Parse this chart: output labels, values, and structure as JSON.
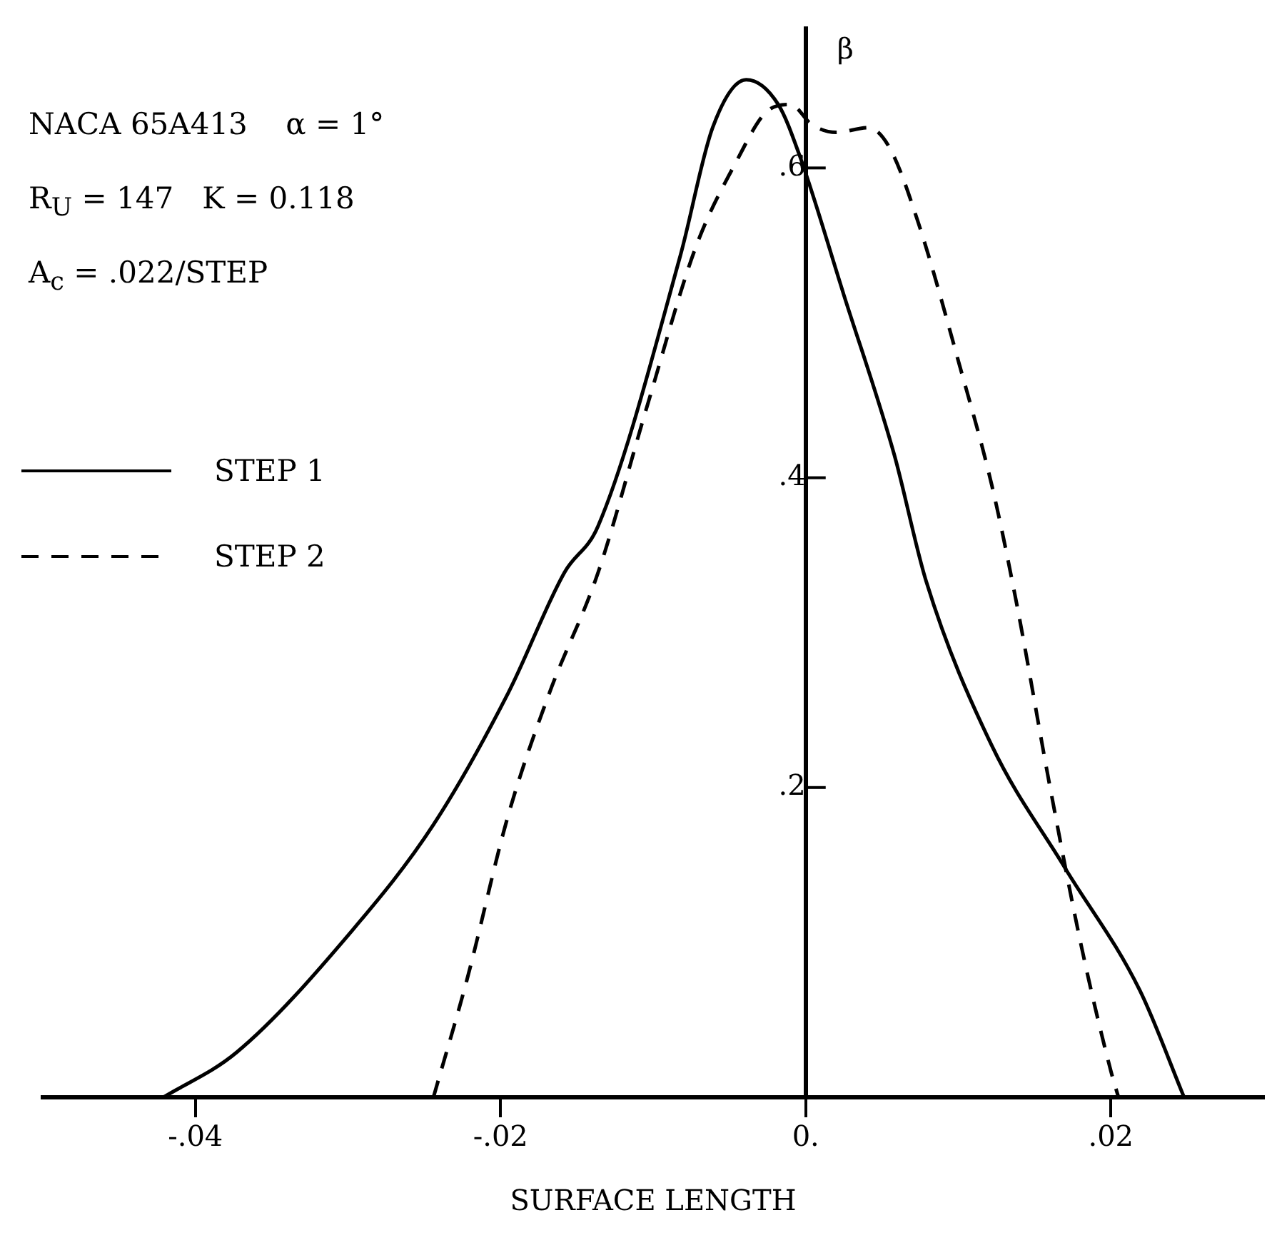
{
  "chart_data": {
    "type": "line",
    "xlabel": "SURFACE LENGTH",
    "ylabel": "β",
    "annotations": [
      "NACA 65A413    α = 1°",
      "R$_{U}$ = 147   K = 0.118",
      "A$_{c}$ = .022/STEP"
    ],
    "xlim": [
      -0.05,
      0.03
    ],
    "ylim": [
      0,
      0.69
    ],
    "xticks": [
      {
        "value": -0.04,
        "label": "-.04"
      },
      {
        "value": -0.02,
        "label": "-.02"
      },
      {
        "value": 0,
        "label": "0."
      },
      {
        "value": 0.02,
        "label": ".02"
      }
    ],
    "yticks": [
      {
        "value": 0.2,
        "label": ".2"
      },
      {
        "value": 0.4,
        "label": ".4"
      },
      {
        "value": 0.6,
        "label": ".6"
      }
    ],
    "legend": "top left",
    "marker": "none",
    "grid": false,
    "series": [
      {
        "name": "STEP 1",
        "color": "#000000",
        "line_style": "solid",
        "x": [
          -0.0421,
          -0.0373,
          -0.0297,
          -0.0244,
          -0.0195,
          -0.0158,
          -0.0136,
          -0.0082,
          -0.0061,
          -0.0039,
          -0.0018,
          -0.0004,
          0.0025,
          0.0058,
          0.0079,
          0.0122,
          0.017,
          0.0219,
          0.0248
        ],
        "values": [
          0,
          0.029,
          0.108,
          0.176,
          0.261,
          0.339,
          0.369,
          0.544,
          0.626,
          0.657,
          0.641,
          0.608,
          0.518,
          0.415,
          0.333,
          0.227,
          0.148,
          0.069,
          0
        ]
      },
      {
        "name": "STEP 2",
        "color": "#000000",
        "line_style": "dashed",
        "x": [
          -0.0244,
          -0.0222,
          -0.0195,
          -0.0168,
          -0.0136,
          -0.0104,
          -0.0072,
          -0.0045,
          -0.0026,
          -0.001,
          0.0004,
          0.002,
          0.0041,
          0.0055,
          0.0074,
          0.0101,
          0.0122,
          0.0138,
          0.016,
          0.0181,
          0.02,
          0.0205
        ],
        "values": [
          0,
          0.076,
          0.182,
          0.261,
          0.339,
          0.446,
          0.549,
          0.605,
          0.636,
          0.641,
          0.628,
          0.623,
          0.626,
          0.613,
          0.564,
          0.472,
          0.395,
          0.32,
          0.201,
          0.096,
          0.017,
          0
        ]
      }
    ]
  }
}
